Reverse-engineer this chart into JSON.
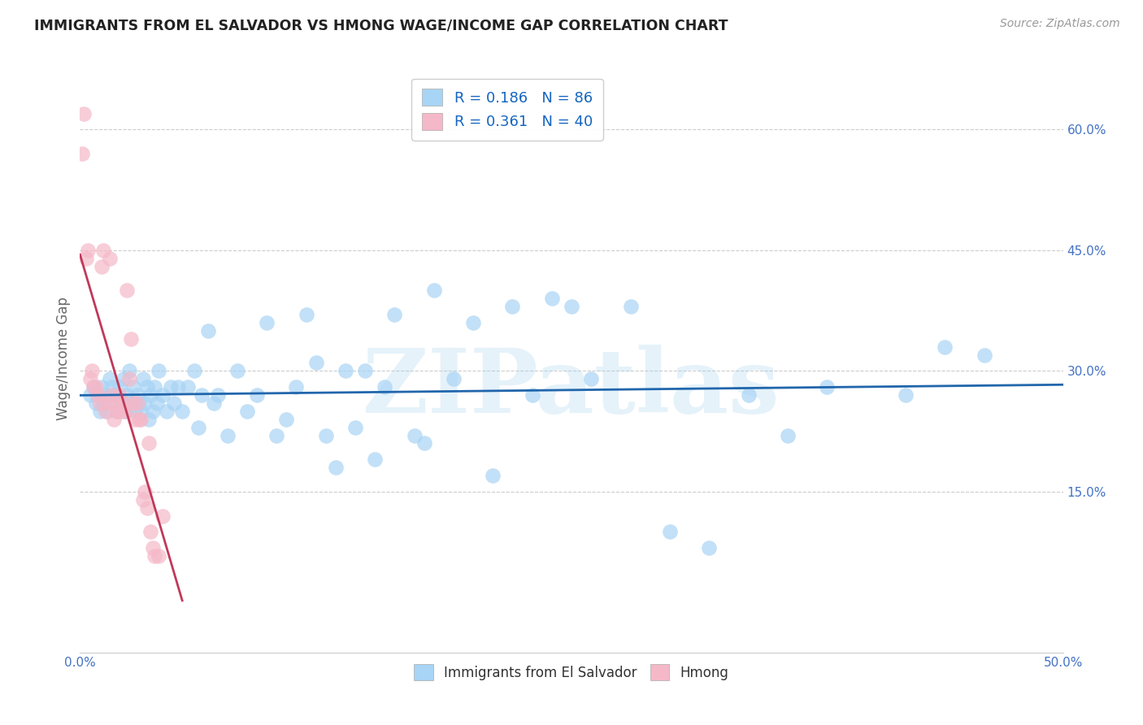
{
  "title": "IMMIGRANTS FROM EL SALVADOR VS HMONG WAGE/INCOME GAP CORRELATION CHART",
  "source": "Source: ZipAtlas.com",
  "ylabel_label": "Wage/Income Gap",
  "x_min": 0.0,
  "x_max": 0.5,
  "y_min": -0.05,
  "y_max": 0.68,
  "x_tick_positions": [
    0.0,
    0.5
  ],
  "x_tick_labels": [
    "0.0%",
    "50.0%"
  ],
  "y_ticks": [
    0.15,
    0.3,
    0.45,
    0.6
  ],
  "y_tick_labels": [
    "15.0%",
    "30.0%",
    "45.0%",
    "60.0%"
  ],
  "blue_R": "0.186",
  "blue_N": "86",
  "pink_R": "0.361",
  "pink_N": "40",
  "watermark": "ZIPatlas",
  "blue_color": "#a8d4f5",
  "pink_color": "#f5b8c8",
  "blue_line_color": "#2166ac",
  "pink_line_color": "#c0395a",
  "legend_label_blue": "Immigrants from El Salvador",
  "legend_label_pink": "Hmong",
  "blue_scatter_x": [
    0.005,
    0.007,
    0.008,
    0.009,
    0.01,
    0.011,
    0.012,
    0.013,
    0.014,
    0.015,
    0.016,
    0.017,
    0.018,
    0.019,
    0.02,
    0.021,
    0.022,
    0.023,
    0.024,
    0.025,
    0.026,
    0.027,
    0.028,
    0.029,
    0.03,
    0.031,
    0.032,
    0.033,
    0.034,
    0.035,
    0.036,
    0.037,
    0.038,
    0.039,
    0.04,
    0.042,
    0.044,
    0.046,
    0.048,
    0.05,
    0.052,
    0.055,
    0.058,
    0.06,
    0.062,
    0.065,
    0.068,
    0.07,
    0.075,
    0.08,
    0.085,
    0.09,
    0.095,
    0.1,
    0.105,
    0.11,
    0.115,
    0.12,
    0.125,
    0.13,
    0.135,
    0.14,
    0.145,
    0.15,
    0.155,
    0.16,
    0.17,
    0.175,
    0.18,
    0.19,
    0.2,
    0.21,
    0.22,
    0.23,
    0.24,
    0.25,
    0.26,
    0.28,
    0.3,
    0.32,
    0.34,
    0.36,
    0.38,
    0.42,
    0.44,
    0.46
  ],
  "blue_scatter_y": [
    0.27,
    0.28,
    0.26,
    0.27,
    0.25,
    0.28,
    0.26,
    0.27,
    0.25,
    0.29,
    0.28,
    0.26,
    0.27,
    0.25,
    0.28,
    0.26,
    0.29,
    0.25,
    0.27,
    0.3,
    0.26,
    0.28,
    0.25,
    0.27,
    0.26,
    0.25,
    0.29,
    0.26,
    0.28,
    0.24,
    0.27,
    0.25,
    0.28,
    0.26,
    0.3,
    0.27,
    0.25,
    0.28,
    0.26,
    0.28,
    0.25,
    0.28,
    0.3,
    0.23,
    0.27,
    0.35,
    0.26,
    0.27,
    0.22,
    0.3,
    0.25,
    0.27,
    0.36,
    0.22,
    0.24,
    0.28,
    0.37,
    0.31,
    0.22,
    0.18,
    0.3,
    0.23,
    0.3,
    0.19,
    0.28,
    0.37,
    0.22,
    0.21,
    0.4,
    0.29,
    0.36,
    0.17,
    0.38,
    0.27,
    0.39,
    0.38,
    0.29,
    0.38,
    0.1,
    0.08,
    0.27,
    0.22,
    0.28,
    0.27,
    0.33,
    0.32
  ],
  "pink_scatter_x": [
    0.001,
    0.002,
    0.003,
    0.004,
    0.005,
    0.006,
    0.007,
    0.008,
    0.009,
    0.01,
    0.011,
    0.012,
    0.013,
    0.014,
    0.015,
    0.016,
    0.017,
    0.018,
    0.019,
    0.02,
    0.021,
    0.022,
    0.023,
    0.024,
    0.025,
    0.026,
    0.027,
    0.028,
    0.029,
    0.03,
    0.031,
    0.032,
    0.033,
    0.034,
    0.035,
    0.036,
    0.037,
    0.038,
    0.04,
    0.042
  ],
  "pink_scatter_y": [
    0.57,
    0.62,
    0.44,
    0.45,
    0.29,
    0.3,
    0.28,
    0.28,
    0.27,
    0.26,
    0.43,
    0.45,
    0.25,
    0.26,
    0.44,
    0.27,
    0.24,
    0.26,
    0.25,
    0.27,
    0.25,
    0.26,
    0.25,
    0.4,
    0.29,
    0.34,
    0.26,
    0.24,
    0.26,
    0.24,
    0.24,
    0.14,
    0.15,
    0.13,
    0.21,
    0.1,
    0.08,
    0.07,
    0.07,
    0.12
  ]
}
